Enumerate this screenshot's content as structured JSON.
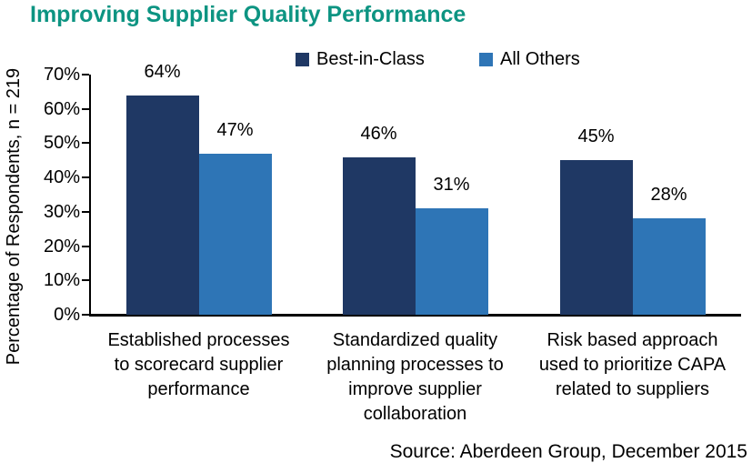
{
  "chart_data": {
    "type": "bar",
    "title": "Improving Supplier Quality Performance",
    "title_color": "#0D9482",
    "categories": [
      "Established processes to scorecard supplier performance",
      "Standardized quality planning processes to improve supplier collaboration",
      "Risk based approach used to prioritize CAPA related to suppliers"
    ],
    "categories_lines": [
      [
        "Established processes",
        "to scorecard supplier",
        "performance"
      ],
      [
        "Standardized quality",
        "planning processes to",
        "improve supplier",
        "collaboration"
      ],
      [
        "Risk based approach",
        "used to prioritize CAPA",
        "related to suppliers"
      ]
    ],
    "series": [
      {
        "name": "Best-in-Class",
        "color": "#1F3864",
        "values": [
          64,
          46,
          45
        ]
      },
      {
        "name": "All Others",
        "color": "#2E75B6",
        "values": [
          47,
          31,
          28
        ]
      }
    ],
    "value_labels": [
      [
        "64%",
        "46%",
        "45%"
      ],
      [
        "47%",
        "31%",
        "28%"
      ]
    ],
    "ylabel": "Percentage of Respondents, n = 219",
    "xlabel": "",
    "ylim": [
      0,
      70
    ],
    "yticks": [
      "0%",
      "10%",
      "20%",
      "30%",
      "40%",
      "50%",
      "60%",
      "70%"
    ],
    "grid": false,
    "legend_position": "top",
    "source": "Source: Aberdeen Group, December 2015",
    "text_color": "#000000",
    "axis_color": "#000000"
  }
}
